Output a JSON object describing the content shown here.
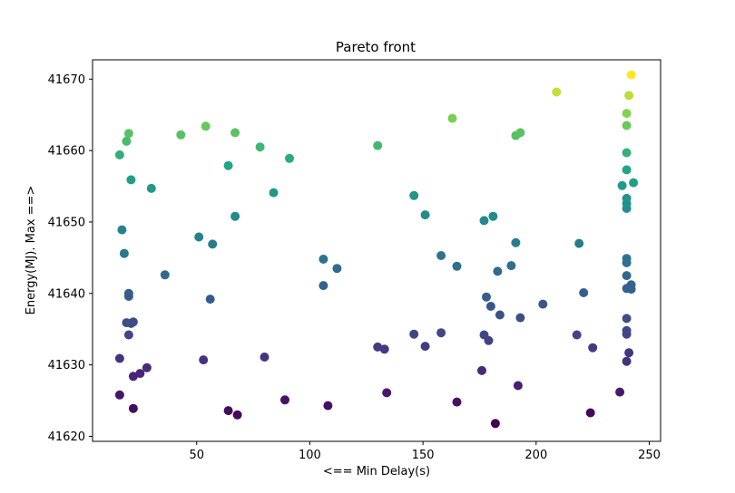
{
  "chart_data": {
    "type": "scatter",
    "title": "Pareto front",
    "xlabel": "<== Min Delay(s)",
    "ylabel": "Energy(MJ). Max ==>",
    "xlim": [
      4,
      255
    ],
    "ylim": [
      41619.3,
      41672.7
    ],
    "xticks": [
      50,
      100,
      150,
      200,
      250
    ],
    "yticks": [
      41620,
      41630,
      41640,
      41650,
      41660,
      41670
    ],
    "grid": false,
    "legend": "none",
    "colormap": "viridis",
    "points": [
      {
        "x": 16,
        "y": 41625.8
      },
      {
        "x": 22,
        "y": 41623.9
      },
      {
        "x": 64,
        "y": 41623.6
      },
      {
        "x": 68,
        "y": 41623.0
      },
      {
        "x": 89,
        "y": 41625.1
      },
      {
        "x": 108,
        "y": 41624.3
      },
      {
        "x": 134,
        "y": 41626.1
      },
      {
        "x": 165,
        "y": 41624.8
      },
      {
        "x": 182,
        "y": 41621.8
      },
      {
        "x": 224,
        "y": 41623.3
      },
      {
        "x": 25,
        "y": 41628.8
      },
      {
        "x": 28,
        "y": 41629.6
      },
      {
        "x": 22,
        "y": 41628.4
      },
      {
        "x": 16,
        "y": 41630.9
      },
      {
        "x": 53,
        "y": 41630.7
      },
      {
        "x": 80,
        "y": 41631.1
      },
      {
        "x": 176,
        "y": 41629.2
      },
      {
        "x": 192,
        "y": 41627.1
      },
      {
        "x": 237,
        "y": 41626.2
      },
      {
        "x": 240,
        "y": 41630.5
      },
      {
        "x": 130,
        "y": 41632.5
      },
      {
        "x": 133,
        "y": 41632.2
      },
      {
        "x": 151,
        "y": 41632.6
      },
      {
        "x": 225,
        "y": 41632.4
      },
      {
        "x": 241,
        "y": 41631.7
      },
      {
        "x": 179,
        "y": 41633.4
      },
      {
        "x": 20,
        "y": 41634.2
      },
      {
        "x": 146,
        "y": 41634.3
      },
      {
        "x": 158,
        "y": 41634.5
      },
      {
        "x": 177,
        "y": 41634.2
      },
      {
        "x": 218,
        "y": 41634.2
      },
      {
        "x": 240,
        "y": 41634.3
      },
      {
        "x": 240,
        "y": 41634.8
      },
      {
        "x": 19,
        "y": 41635.9
      },
      {
        "x": 21,
        "y": 41635.8
      },
      {
        "x": 22,
        "y": 41636.0
      },
      {
        "x": 184,
        "y": 41637.0
      },
      {
        "x": 193,
        "y": 41636.6
      },
      {
        "x": 240,
        "y": 41636.5
      },
      {
        "x": 56,
        "y": 41639.2
      },
      {
        "x": 178,
        "y": 41639.5
      },
      {
        "x": 180,
        "y": 41638.2
      },
      {
        "x": 203,
        "y": 41638.5
      },
      {
        "x": 20,
        "y": 41640.0
      },
      {
        "x": 20,
        "y": 41639.6
      },
      {
        "x": 106,
        "y": 41641.1
      },
      {
        "x": 221,
        "y": 41640.1
      },
      {
        "x": 240,
        "y": 41640.7
      },
      {
        "x": 242,
        "y": 41640.6
      },
      {
        "x": 242,
        "y": 41641.2
      },
      {
        "x": 36,
        "y": 41642.6
      },
      {
        "x": 183,
        "y": 41643.1
      },
      {
        "x": 189,
        "y": 41643.9
      },
      {
        "x": 240,
        "y": 41642.5
      },
      {
        "x": 112,
        "y": 41643.5
      },
      {
        "x": 165,
        "y": 41643.8
      },
      {
        "x": 106,
        "y": 41644.8
      },
      {
        "x": 158,
        "y": 41645.3
      },
      {
        "x": 240,
        "y": 41644.3
      },
      {
        "x": 240,
        "y": 41644.9
      },
      {
        "x": 18,
        "y": 41645.6
      },
      {
        "x": 51,
        "y": 41647.9
      },
      {
        "x": 57,
        "y": 41646.9
      },
      {
        "x": 191,
        "y": 41647.1
      },
      {
        "x": 219,
        "y": 41647.0
      },
      {
        "x": 17,
        "y": 41648.9
      },
      {
        "x": 67,
        "y": 41650.8
      },
      {
        "x": 151,
        "y": 41651.0
      },
      {
        "x": 177,
        "y": 41650.2
      },
      {
        "x": 181,
        "y": 41650.8
      },
      {
        "x": 240,
        "y": 41651.9
      },
      {
        "x": 240,
        "y": 41652.6
      },
      {
        "x": 146,
        "y": 41653.7
      },
      {
        "x": 240,
        "y": 41653.3
      },
      {
        "x": 84,
        "y": 41654.1
      },
      {
        "x": 30,
        "y": 41654.7
      },
      {
        "x": 21,
        "y": 41655.9
      },
      {
        "x": 238,
        "y": 41655.1
      },
      {
        "x": 243,
        "y": 41655.5
      },
      {
        "x": 64,
        "y": 41657.9
      },
      {
        "x": 240,
        "y": 41657.3
      },
      {
        "x": 16,
        "y": 41659.4
      },
      {
        "x": 91,
        "y": 41658.9
      },
      {
        "x": 240,
        "y": 41659.7
      },
      {
        "x": 78,
        "y": 41660.5
      },
      {
        "x": 130,
        "y": 41660.7
      },
      {
        "x": 19,
        "y": 41661.3
      },
      {
        "x": 43,
        "y": 41662.2
      },
      {
        "x": 20,
        "y": 41662.4
      },
      {
        "x": 67,
        "y": 41662.5
      },
      {
        "x": 191,
        "y": 41662.1
      },
      {
        "x": 193,
        "y": 41662.5
      },
      {
        "x": 54,
        "y": 41663.4
      },
      {
        "x": 163,
        "y": 41664.5
      },
      {
        "x": 240,
        "y": 41663.5
      },
      {
        "x": 240,
        "y": 41665.2
      },
      {
        "x": 241,
        "y": 41667.7
      },
      {
        "x": 209,
        "y": 41668.2
      },
      {
        "x": 242,
        "y": 41670.6
      }
    ]
  }
}
